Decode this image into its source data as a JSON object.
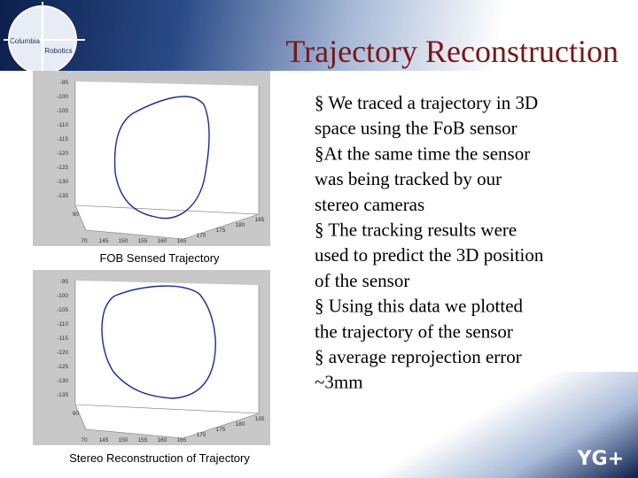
{
  "header": {
    "logo": {
      "line1": "Columbia",
      "line2": "Robotics"
    },
    "title": "Trajectory Reconstruction"
  },
  "figures": [
    {
      "caption": "FOB Sensed Trajectory",
      "yticks": [
        "-95",
        "-100",
        "-105",
        "-110",
        "-115",
        "-120",
        "-125",
        "-130",
        "-135"
      ],
      "zlabel": "90",
      "xticks": [
        "70",
        "145",
        "150",
        "155",
        "160",
        "165",
        "170",
        "175",
        "180",
        "185"
      ]
    },
    {
      "caption": "Stereo Reconstruction of Trajectory",
      "yticks": [
        "-95",
        "-100",
        "-105",
        "-110",
        "-115",
        "-120",
        "-125",
        "-130",
        "-135"
      ],
      "zlabel": "90",
      "xticks": [
        "70",
        "145",
        "150",
        "155",
        "160",
        "165",
        "170",
        "175",
        "180",
        "135"
      ]
    }
  ],
  "body": {
    "lines": [
      "§ We traced a trajectory in 3D",
      "space using the FoB sensor",
      "§At the same time the sensor",
      "was being tracked by our",
      "stereo cameras",
      "§ The tracking results were",
      "used to predict the 3D position",
      "of the sensor",
      "§ Using this data we plotted",
      "the trajectory of the sensor",
      "§ average reprojection error",
      "~3mm"
    ]
  },
  "footer": {
    "logo": "YG+"
  }
}
